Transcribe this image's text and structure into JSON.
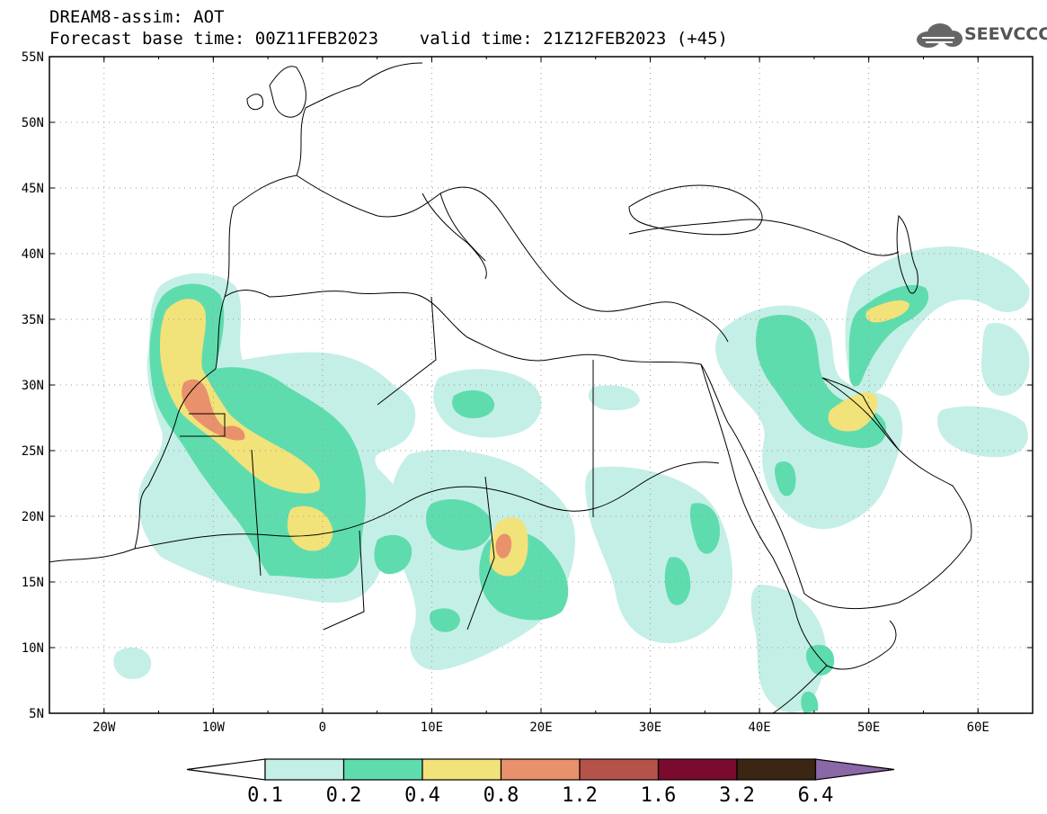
{
  "header": {
    "model_line": "DREAM8-assim: AOT",
    "base_time_line": "Forecast base time: 00Z11FEB2023    valid time: 21Z12FEB2023 (+45)"
  },
  "logo": {
    "text": "SEEVCCC",
    "icon": "cloud-icon"
  },
  "axes": {
    "lat_labels": [
      "55N",
      "50N",
      "45N",
      "40N",
      "35N",
      "30N",
      "25N",
      "20N",
      "15N",
      "10N",
      "5N"
    ],
    "lon_labels": [
      "20W",
      "10W",
      "0",
      "10E",
      "20E",
      "30E",
      "40E",
      "50E",
      "60E"
    ],
    "lon_range": [
      -25,
      65
    ],
    "lat_range": [
      5,
      55
    ]
  },
  "colorbar": {
    "ticks": [
      "0.1",
      "0.2",
      "0.4",
      "0.8",
      "1.2",
      "1.6",
      "3.2",
      "6.4"
    ],
    "colors": [
      "#ffffff",
      "#c4efe6",
      "#5fdcae",
      "#f2e27a",
      "#e9916c",
      "#b5534a",
      "#7a0b2e",
      "#3b2513",
      "#8a67a6"
    ]
  },
  "colors": {
    "frame": "#000000",
    "grid": "#9a9a9a",
    "coast": "#000000"
  }
}
